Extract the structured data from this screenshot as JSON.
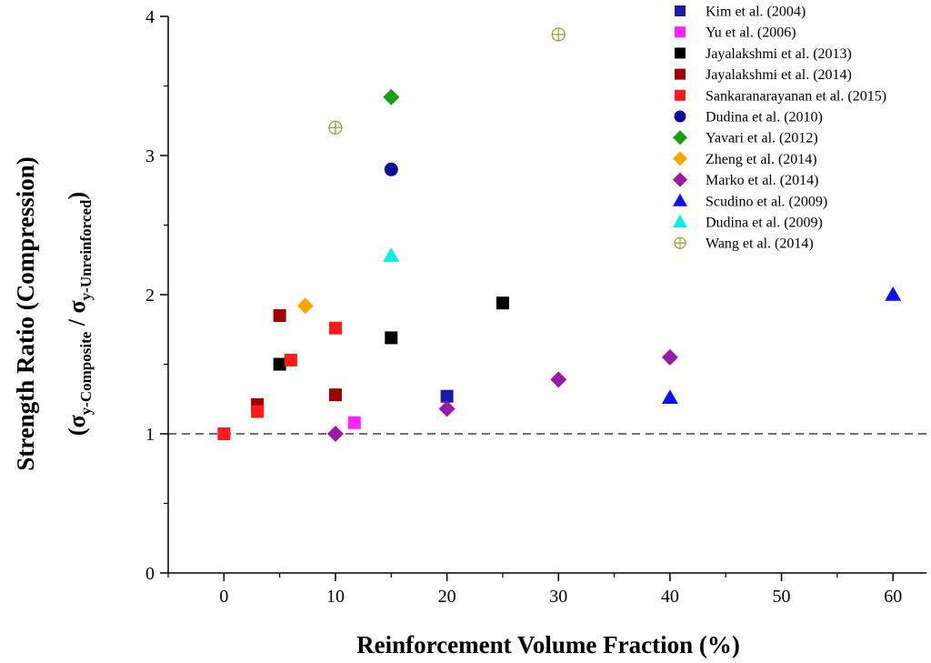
{
  "chart_data": {
    "type": "scatter",
    "xlabel": "Reinforcement Volume Fraction (%)",
    "ylabel_line1": "Strength Ratio (Compression)",
    "ylabel_line2": {
      "open": "(σ",
      "sub1": "y-Composite",
      "mid": " / σ",
      "sub2": "y-Unreinforced",
      "close": ")"
    },
    "xlim": [
      -5,
      63
    ],
    "ylim": [
      0,
      4
    ],
    "xticks": [
      0,
      10,
      20,
      30,
      40,
      50,
      60
    ],
    "yticks": [
      0,
      1,
      2,
      3,
      4
    ],
    "reference_line": {
      "y": 1,
      "style": "dashed"
    },
    "legend_position": "top-right",
    "series": [
      {
        "name": "Kim et al. (2004)",
        "marker": "square",
        "color": "#1a1aa8",
        "points": [
          [
            20,
            1.27
          ]
        ]
      },
      {
        "name": "Yu et al. (2006)",
        "marker": "square",
        "color": "#ff22ff",
        "points": [
          [
            11.7,
            1.08
          ]
        ]
      },
      {
        "name": "Jayalakshmi et al. (2013)",
        "marker": "square",
        "color": "#000000",
        "points": [
          [
            5,
            1.5
          ],
          [
            15,
            1.69
          ],
          [
            25,
            1.94
          ]
        ]
      },
      {
        "name": "Jayalakshmi et al. (2014)",
        "marker": "square",
        "color": "#a00000",
        "points": [
          [
            3,
            1.21
          ],
          [
            5,
            1.85
          ],
          [
            10,
            1.28
          ]
        ]
      },
      {
        "name": "Sankaranarayanan et al. (2015)",
        "marker": "square",
        "color": "#ff1a1a",
        "points": [
          [
            0,
            1.0
          ],
          [
            3,
            1.16
          ],
          [
            6,
            1.53
          ],
          [
            10,
            1.76
          ]
        ]
      },
      {
        "name": "Dudina et al. (2010)",
        "marker": "circle",
        "color": "#0a0a9a",
        "points": [
          [
            15,
            2.9
          ]
        ]
      },
      {
        "name": "Yavari et al. (2012)",
        "marker": "diamond",
        "color": "#16a016",
        "points": [
          [
            15,
            3.42
          ]
        ]
      },
      {
        "name": "Zheng et al. (2014)",
        "marker": "diamond",
        "color": "#ffa500",
        "points": [
          [
            7.3,
            1.92
          ]
        ]
      },
      {
        "name": "Marko et al. (2014)",
        "marker": "diamond",
        "color": "#9a1aa8",
        "points": [
          [
            10,
            1.0
          ],
          [
            20,
            1.18
          ],
          [
            30,
            1.39
          ],
          [
            40,
            1.55
          ]
        ]
      },
      {
        "name": "Scudino et al. (2009)",
        "marker": "triangle",
        "color": "#1010ee",
        "points": [
          [
            40,
            1.26
          ],
          [
            60,
            2.0
          ]
        ]
      },
      {
        "name": "Dudina et al. (2009)",
        "marker": "triangle",
        "color": "#00f0f0",
        "points": [
          [
            15,
            2.28
          ]
        ]
      },
      {
        "name": "Wang et al. (2014)",
        "marker": "crosscircle",
        "color": "#a0a030",
        "points": [
          [
            10,
            3.2
          ],
          [
            30,
            3.87
          ]
        ]
      }
    ]
  }
}
